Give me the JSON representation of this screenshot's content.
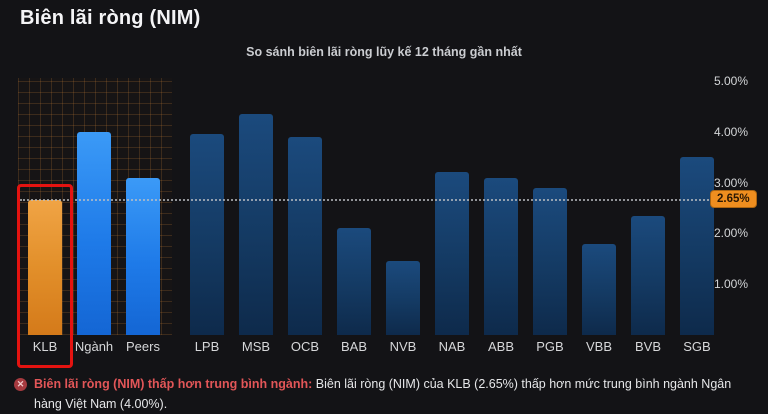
{
  "header": {
    "title": "Biên lãi ròng (NIM)"
  },
  "chart_data": {
    "type": "bar",
    "title": "So sánh biên lãi ròng lũy kế 12 tháng gần nhất",
    "categories": [
      "KLB",
      "Ngành",
      "Peers",
      "LPB",
      "MSB",
      "OCB",
      "BAB",
      "NVB",
      "NAB",
      "ABB",
      "PGB",
      "VBB",
      "BVB",
      "SGB"
    ],
    "values": [
      2.65,
      4.0,
      3.1,
      3.95,
      4.35,
      3.9,
      2.1,
      1.45,
      3.2,
      3.1,
      2.9,
      1.8,
      2.35,
      3.5
    ],
    "bar_kinds": [
      "klb",
      "benchmark",
      "benchmark",
      "bank",
      "bank",
      "bank",
      "bank",
      "bank",
      "bank",
      "bank",
      "bank",
      "bank",
      "bank",
      "bank"
    ],
    "xlabel": "",
    "ylabel": "",
    "ylim": [
      0,
      5
    ],
    "yticks": [
      "1.00%",
      "2.00%",
      "3.00%",
      "4.00%",
      "5.00%"
    ],
    "grid": "hatched pattern behind KLB/Ngành/Peers group only",
    "legend_position": "none",
    "threshold": {
      "value": 2.65,
      "label": "2.65%"
    },
    "highlight": {
      "category": "KLB"
    },
    "colors": {
      "klb_bar": "#e28f2a",
      "benchmark_bar": "#1e7ae8",
      "bank_bar": "#143a63",
      "highlight_box": "#e41310",
      "threshold_badge_bg": "#ef8e1f"
    }
  },
  "note": {
    "icon": "x-circle-icon",
    "icon_glyph": "✕",
    "heading": "Biên lãi ròng (NIM) thấp hơn trung bình ngành:",
    "body": "Biên lãi ròng (NIM) của KLB (2.65%) thấp hơn mức trung bình ngành Ngân hàng Việt Nam (4.00%)."
  }
}
